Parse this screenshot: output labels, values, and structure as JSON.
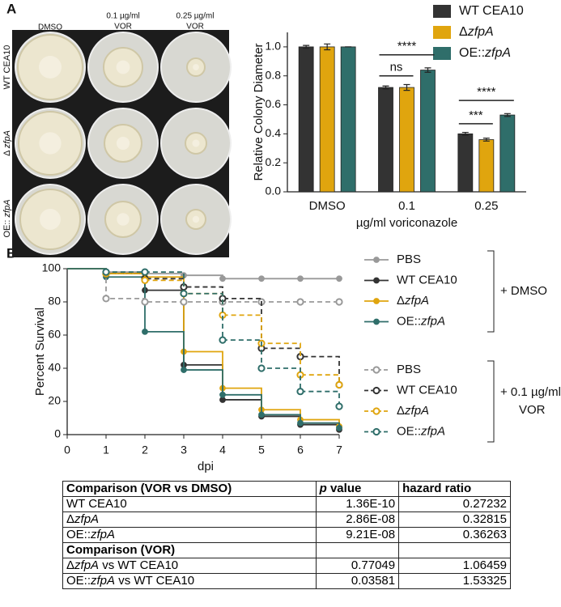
{
  "panels": [
    "A",
    "B"
  ],
  "plates": {
    "columns": [
      [
        "DMSO"
      ],
      [
        "0.1 µg/ml",
        "VOR"
      ],
      [
        "0.25 µg/ml",
        "VOR"
      ]
    ],
    "rows": [
      "WT CEA10",
      "Δ zfpA",
      "OE:: zfpA"
    ]
  },
  "chart_data": [
    {
      "type": "bar",
      "y_label": "Relative Colony Diameter",
      "x_label": "µg/ml voriconazole",
      "categories": [
        "DMSO",
        "0.1",
        "0.25"
      ],
      "series": [
        {
          "name": "WT CEA10",
          "color": "#333333",
          "values": [
            1.0,
            0.72,
            0.4
          ],
          "errors": [
            0.01,
            0.01,
            0.01
          ]
        },
        {
          "name": "ΔzfpA",
          "color": "#e0a50e",
          "values": [
            1.0,
            0.72,
            0.36
          ],
          "errors": [
            0.02,
            0.02,
            0.01
          ]
        },
        {
          "name": "OE::zfpA",
          "color": "#2f6e6a",
          "values": [
            1.0,
            0.84,
            0.53
          ],
          "errors": [
            0.0,
            0.015,
            0.01
          ]
        }
      ],
      "ylim": [
        0,
        1.1
      ],
      "yticks": [
        {
          "value": 0,
          "label": "0.0"
        },
        0.2,
        0.4,
        0.6,
        0.8,
        {
          "value": 1,
          "label": "1.0"
        }
      ],
      "annotations": [
        {
          "label": "ns",
          "category": 1,
          "series": [
            0,
            1
          ]
        },
        {
          "label": "****",
          "category": 1,
          "series": [
            0,
            2
          ]
        },
        {
          "label": "***",
          "category": 2,
          "series": [
            0,
            1
          ]
        },
        {
          "label": "****",
          "category": 2,
          "series": [
            0,
            2
          ]
        }
      ]
    },
    {
      "type": "step",
      "y_label": "Percent Survival",
      "x_label": "dpi",
      "x": [
        0,
        1,
        2,
        3,
        4,
        5,
        6,
        7
      ],
      "xlim": [
        0,
        7
      ],
      "xticks": [
        0,
        1,
        2,
        3,
        4,
        5,
        6,
        7
      ],
      "ylim": [
        0,
        100
      ],
      "yticks": [
        0,
        20,
        40,
        60,
        80,
        100
      ],
      "legend_groups": [
        [
          "+ DMSO"
        ],
        [
          "+ 0.1 µg/ml",
          "VOR"
        ]
      ],
      "series": [
        {
          "name": "PBS",
          "color": "#999999",
          "group": 0,
          "dashed": false,
          "values": [
            100,
            98,
            97,
            96,
            94,
            94,
            94,
            94
          ]
        },
        {
          "name": "WT CEA10",
          "color": "#333333",
          "group": 0,
          "dashed": false,
          "values": [
            100,
            97,
            87,
            42,
            21,
            11,
            6,
            3
          ]
        },
        {
          "name": "ΔzfpA",
          "color": "#e0a50e",
          "group": 0,
          "dashed": false,
          "values": [
            100,
            97,
            95,
            50,
            28,
            15,
            9,
            5
          ]
        },
        {
          "name": "OE::zfpA",
          "color": "#2f6e6a",
          "group": 0,
          "dashed": false,
          "values": [
            100,
            95,
            62,
            39,
            24,
            12,
            7,
            4
          ]
        },
        {
          "name": "PBS",
          "color": "#999999",
          "group": 1,
          "dashed": true,
          "values": [
            100,
            82,
            80,
            80,
            80,
            80,
            80,
            80
          ]
        },
        {
          "name": "WT CEA10",
          "color": "#333333",
          "group": 1,
          "dashed": true,
          "values": [
            100,
            97,
            94,
            89,
            82,
            52,
            47,
            30
          ]
        },
        {
          "name": "ΔzfpA",
          "color": "#e0a50e",
          "group": 1,
          "dashed": true,
          "values": [
            100,
            97,
            93,
            85,
            72,
            55,
            36,
            30
          ]
        },
        {
          "name": "OE::zfpA",
          "color": "#2f6e6a",
          "group": 1,
          "dashed": true,
          "values": [
            100,
            98,
            98,
            85,
            57,
            40,
            26,
            17
          ]
        }
      ]
    }
  ],
  "table": {
    "columns": [
      "Comparison (VOR vs DMSO)",
      "p value",
      "hazard ratio"
    ],
    "rows": [
      [
        "WT CEA10",
        "1.36E-10",
        "0.27232"
      ],
      [
        "ΔzfpA",
        "2.86E-08",
        "0.32815"
      ],
      [
        "OE::zfpA",
        "9.21E-08",
        "0.36263"
      ]
    ],
    "section": "Comparison (VOR)",
    "section_rows": [
      [
        "ΔzfpA  vs WT CEA10",
        "0.77049",
        "1.06459"
      ],
      [
        "OE::zfpA  vs WT CEA10",
        "0.03581",
        "1.53325"
      ]
    ]
  }
}
